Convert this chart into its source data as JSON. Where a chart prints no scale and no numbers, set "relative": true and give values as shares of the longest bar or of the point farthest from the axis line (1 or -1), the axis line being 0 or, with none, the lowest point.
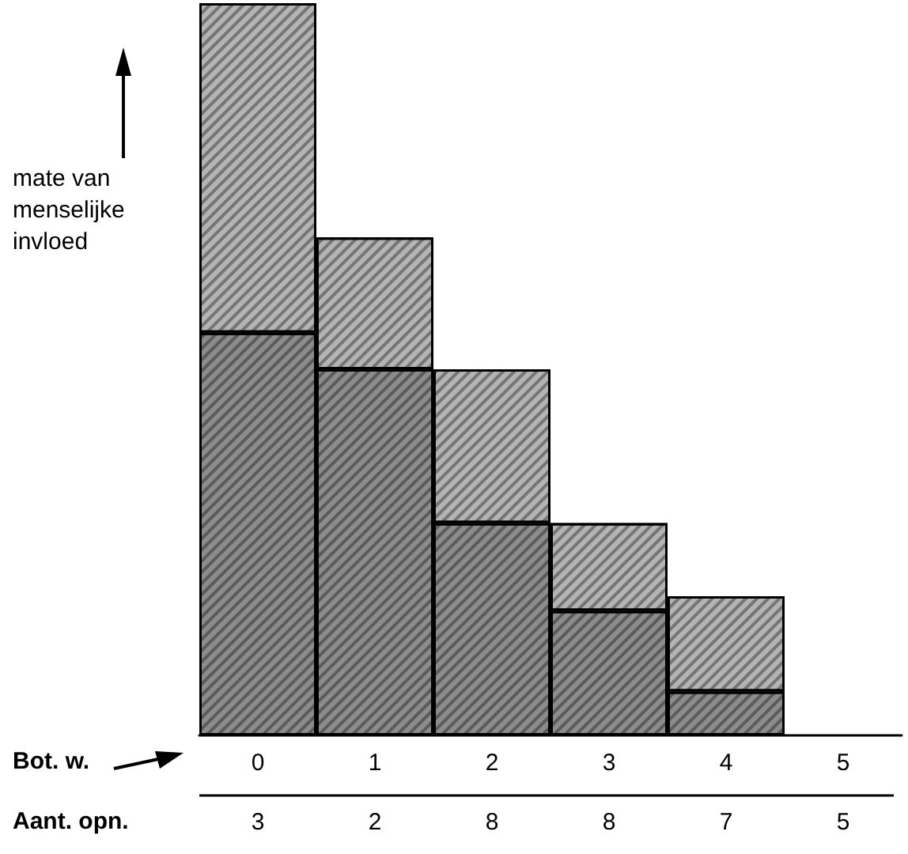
{
  "chart_data": {
    "type": "bar",
    "stacked": true,
    "relative": true,
    "ylabel": "mate van\nmenselijke\ninvloed",
    "xlabel": "Bot. w.",
    "categories": [
      "0",
      "1",
      "2",
      "3",
      "4",
      "5"
    ],
    "series": [
      {
        "color": "#8c8c8c",
        "values": [
          0.55,
          0.5,
          0.29,
          0.17,
          0.06,
          null
        ]
      },
      {
        "color": "#b4b4b4",
        "values": [
          0.45,
          0.18,
          0.21,
          0.12,
          0.13,
          null
        ]
      }
    ],
    "annotations": [
      "Aant. opn.",
      "3",
      "2",
      "8",
      "8",
      "7",
      "5"
    ]
  }
}
